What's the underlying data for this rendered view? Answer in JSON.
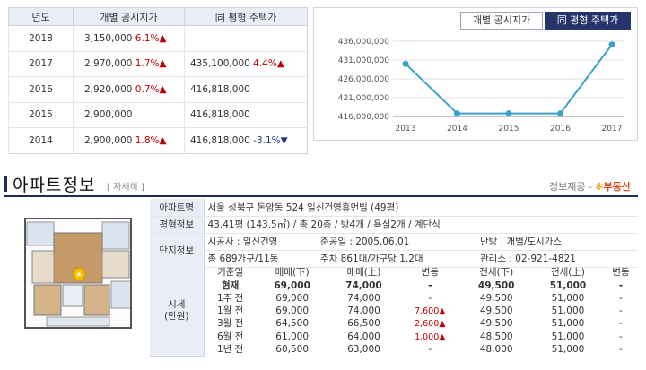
{
  "price_table": {
    "headers": [
      "년도",
      "개별 공시지가",
      "同 평형 주택가"
    ],
    "rows": [
      {
        "year": "2018",
        "ind": "3,150,000",
        "ind_chg": "6.1%▲",
        "same": "",
        "same_chg": ""
      },
      {
        "year": "2017",
        "ind": "2,970,000",
        "ind_chg": "1.7%▲",
        "same": "435,100,000",
        "same_chg": "4.4%▲"
      },
      {
        "year": "2016",
        "ind": "2,920,000",
        "ind_chg": "0.7%▲",
        "same": "416,818,000",
        "same_chg": ""
      },
      {
        "year": "2015",
        "ind": "2,900,000",
        "ind_chg": "",
        "same": "416,818,000",
        "same_chg": ""
      },
      {
        "year": "2014",
        "ind": "2,900,000",
        "ind_chg": "1.8%▲",
        "same": "416,818,000",
        "same_chg": "-3.1%▼"
      }
    ]
  },
  "chart_tabs": {
    "individual": "개별 공시지가",
    "same": "同 평형 주택가"
  },
  "chart_data": {
    "type": "line",
    "x": [
      "2013",
      "2014",
      "2015",
      "2016",
      "2017"
    ],
    "series": [
      {
        "values": [
          430000000,
          416818000,
          416818000,
          416818000,
          435100000
        ]
      }
    ],
    "ylim": [
      416000000,
      436000000
    ],
    "yticks": [
      "436,000,000",
      "431,000,000",
      "426,000,000",
      "421,000,000",
      "416,000,000"
    ],
    "line_color": "#3aa0cc",
    "grid": true
  },
  "apt": {
    "title": "아파트정보",
    "detail": "[ 자세히 ]",
    "source_label": "정보제공 -",
    "source_logo": "부동산",
    "name_label": "아파트명",
    "name": "서울 성북구 돈암동 524 일신건영휴먼빌 (49평)",
    "size_label": "평형정보",
    "size": "43.41평 (143.5㎡) / 총 20층 / 방4개 / 욕실2개 / 계단식",
    "complex_label": "단지정보",
    "builder": "시공사 : 일신건영",
    "completed": "준공일 : 2005.06.01",
    "heating": "난방 : 개별/도시가스",
    "households": "총 689가구/11동",
    "parking": "주차 861대/가구당 1.2대",
    "office": "관리소 : 02-921-4821"
  },
  "sise": {
    "label": "시세\n(만원)",
    "label_line1": "시세",
    "label_line2": "(만원)",
    "headers": [
      "기준일",
      "매매(下)",
      "매매(上)",
      "변동",
      "전세(下)",
      "전세(上)",
      "변동"
    ],
    "rows": [
      [
        "현재",
        "69,000",
        "74,000",
        "-",
        "49,500",
        "51,000",
        "-"
      ],
      [
        "1주 전",
        "69,000",
        "74,000",
        "-",
        "49,500",
        "51,000",
        "-"
      ],
      [
        "1월 전",
        "69,000",
        "74,000",
        "7,600▲",
        "49,500",
        "51,000",
        "-"
      ],
      [
        "3월 전",
        "64,500",
        "66,500",
        "2,600▲",
        "49,500",
        "51,000",
        "-"
      ],
      [
        "6월 전",
        "61,000",
        "64,000",
        "1,000▲",
        "48,500",
        "51,000",
        "-"
      ],
      [
        "1년 전",
        "60,500",
        "63,000",
        "-",
        "48,000",
        "51,000",
        "-"
      ]
    ]
  },
  "colors": {
    "header_bg": "#e9eef6",
    "accent_navy": "#1a2b5c",
    "up_red": "#c00000"
  }
}
